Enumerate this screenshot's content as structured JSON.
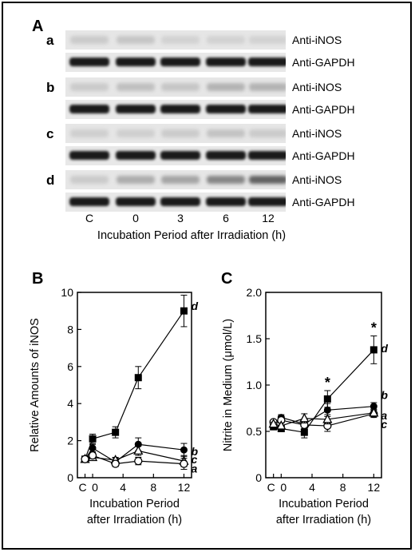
{
  "panels": {
    "A": {
      "letter": "A",
      "rows": [
        {
          "letter": "a",
          "ios_label": "Anti-iNOS",
          "gapdh_label": "Anti-GAPDH",
          "ios_intensity": [
            0.15,
            0.18,
            0.1,
            0.1,
            0.1
          ]
        },
        {
          "letter": "b",
          "ios_label": "Anti-iNOS",
          "gapdh_label": "Anti-GAPDH",
          "ios_intensity": [
            0.15,
            0.22,
            0.18,
            0.3,
            0.3
          ]
        },
        {
          "letter": "c",
          "ios_label": "Anti-iNOS",
          "gapdh_label": "Anti-GAPDH",
          "ios_intensity": [
            0.12,
            0.12,
            0.15,
            0.2,
            0.15
          ]
        },
        {
          "letter": "d",
          "ios_label": "Anti-iNOS",
          "gapdh_label": "Anti-GAPDH",
          "ios_intensity": [
            0.15,
            0.35,
            0.4,
            0.6,
            0.85
          ]
        }
      ],
      "lanes": [
        "C",
        "0",
        "3",
        "6",
        "12"
      ],
      "xlabel": "Incubation Period after Irradiation (h)"
    },
    "B": {
      "letter": "B"
    },
    "C": {
      "letter": "C"
    }
  },
  "chart_data": [
    {
      "panel": "B",
      "type": "line",
      "ylabel": "Relative Amounts of iNOS",
      "xlabel_line1": "Incubation Period",
      "xlabel_line2": "after Irradiation (h)",
      "xlim": [
        -2,
        13
      ],
      "ylim": [
        0,
        10
      ],
      "xticks": [
        "C",
        "0",
        "4",
        "8",
        "12"
      ],
      "yticks": [
        "0",
        "2",
        "4",
        "6",
        "8",
        "10"
      ],
      "x": [
        "C",
        0,
        3,
        6,
        12
      ],
      "series": [
        {
          "name": "d",
          "marker": "filled-square",
          "values": [
            1.0,
            2.1,
            2.45,
            5.4,
            9.0
          ],
          "err": [
            0.1,
            0.25,
            0.3,
            0.6,
            0.85
          ]
        },
        {
          "name": "b",
          "marker": "filled-circle",
          "values": [
            1.0,
            1.6,
            0.85,
            1.8,
            1.5
          ],
          "err": [
            0.1,
            0.2,
            0.2,
            0.35,
            0.35
          ]
        },
        {
          "name": "c",
          "marker": "open-triangle",
          "values": [
            1.0,
            1.1,
            0.95,
            1.45,
            0.9
          ],
          "err": [
            0.1,
            0.15,
            0.15,
            0.25,
            0.3
          ]
        },
        {
          "name": "a",
          "marker": "open-circle",
          "values": [
            1.0,
            1.2,
            0.75,
            0.9,
            0.75
          ],
          "err": [
            0.1,
            0.15,
            0.15,
            0.2,
            0.3
          ]
        }
      ]
    },
    {
      "panel": "C",
      "type": "line",
      "ylabel": "Nitrite in Medium (μmol/L)",
      "xlabel_line1": "Incubation Period",
      "xlabel_line2": "after Irradiation (h)",
      "xlim": [
        -2,
        13
      ],
      "ylim": [
        0,
        2.0
      ],
      "xticks": [
        "C",
        "0",
        "4",
        "8",
        "12"
      ],
      "yticks": [
        "0",
        "0.5",
        "1.0",
        "1.5",
        "2.0"
      ],
      "x": [
        "C",
        0,
        3,
        6,
        12
      ],
      "series": [
        {
          "name": "d",
          "marker": "filled-square",
          "values": [
            0.55,
            0.53,
            0.49,
            0.85,
            1.38
          ],
          "err": [
            0.02,
            0.03,
            0.06,
            0.09,
            0.15
          ]
        },
        {
          "name": "b",
          "marker": "filled-circle",
          "values": [
            0.57,
            0.65,
            0.58,
            0.73,
            0.77
          ],
          "err": [
            0.02,
            0.03,
            0.05,
            0.07,
            0.04
          ]
        },
        {
          "name": "a",
          "marker": "open-circle",
          "values": [
            0.6,
            0.62,
            0.57,
            0.56,
            0.69
          ],
          "err": [
            0.02,
            0.03,
            0.05,
            0.06,
            0.04
          ]
        },
        {
          "name": "c",
          "marker": "open-triangle",
          "values": [
            0.58,
            0.56,
            0.64,
            0.63,
            0.7
          ],
          "err": [
            0.02,
            0.03,
            0.05,
            0.05,
            0.04
          ]
        }
      ],
      "significance": [
        {
          "x": 6,
          "label": "*"
        },
        {
          "x": 12,
          "label": "*"
        }
      ]
    }
  ]
}
